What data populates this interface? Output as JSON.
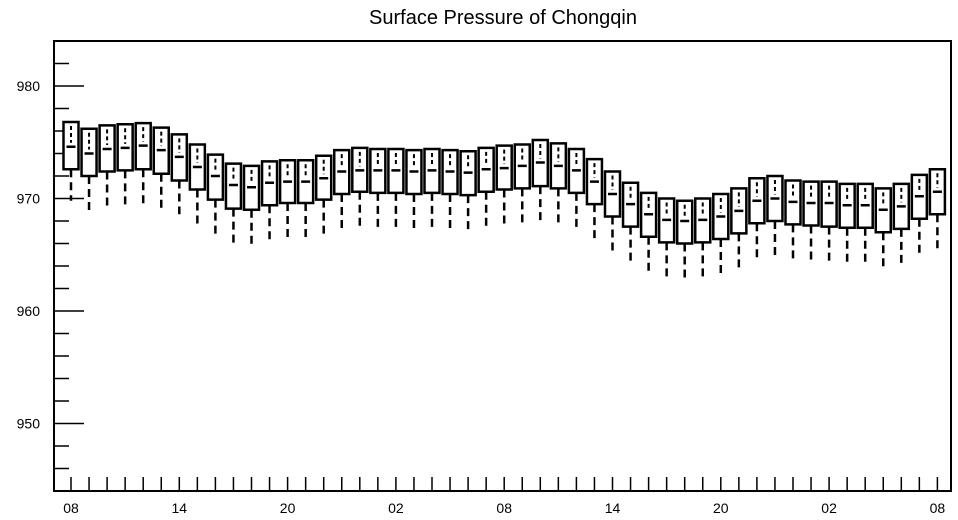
{
  "chart_data": {
    "type": "box",
    "title": "Surface Pressure of Chongqin",
    "xlabel": "",
    "ylabel": "",
    "ylim": [
      944,
      984
    ],
    "yticks": [
      950,
      960,
      970,
      980
    ],
    "x_tick_labels": [
      "08",
      "14",
      "20",
      "02",
      "08",
      "14",
      "20",
      "02",
      "08"
    ],
    "x_tick_positions": [
      0,
      6,
      12,
      18,
      24,
      30,
      36,
      42,
      48
    ],
    "grid": false,
    "series": [
      {
        "boxes": [
          {
            "x": 0,
            "whisker_low": 969.8,
            "q1": 972.6,
            "median": 974.6,
            "q3": 976.8
          },
          {
            "x": 1,
            "whisker_low": 968.8,
            "q1": 972.0,
            "median": 974.0,
            "q3": 976.2
          },
          {
            "x": 2,
            "whisker_low": 969.2,
            "q1": 972.4,
            "median": 974.4,
            "q3": 976.5
          },
          {
            "x": 3,
            "whisker_low": 969.3,
            "q1": 972.5,
            "median": 974.5,
            "q3": 976.6
          },
          {
            "x": 4,
            "whisker_low": 969.4,
            "q1": 972.6,
            "median": 974.7,
            "q3": 976.7
          },
          {
            "x": 5,
            "whisker_low": 969.1,
            "q1": 972.2,
            "median": 974.3,
            "q3": 976.3
          },
          {
            "x": 6,
            "whisker_low": 968.6,
            "q1": 971.6,
            "median": 973.7,
            "q3": 975.7
          },
          {
            "x": 7,
            "whisker_low": 967.6,
            "q1": 970.8,
            "median": 972.8,
            "q3": 974.8
          },
          {
            "x": 8,
            "whisker_low": 966.8,
            "q1": 969.9,
            "median": 972.0,
            "q3": 973.9
          },
          {
            "x": 9,
            "whisker_low": 966.0,
            "q1": 969.1,
            "median": 971.2,
            "q3": 973.1
          },
          {
            "x": 10,
            "whisker_low": 965.8,
            "q1": 969.0,
            "median": 971.0,
            "q3": 972.9
          },
          {
            "x": 11,
            "whisker_low": 966.2,
            "q1": 969.4,
            "median": 971.4,
            "q3": 973.3
          },
          {
            "x": 12,
            "whisker_low": 966.3,
            "q1": 969.6,
            "median": 971.5,
            "q3": 973.4
          },
          {
            "x": 13,
            "whisker_low": 966.3,
            "q1": 969.6,
            "median": 971.5,
            "q3": 973.4
          },
          {
            "x": 14,
            "whisker_low": 966.6,
            "q1": 969.9,
            "median": 971.8,
            "q3": 973.8
          },
          {
            "x": 15,
            "whisker_low": 967.1,
            "q1": 970.4,
            "median": 972.4,
            "q3": 974.3
          },
          {
            "x": 16,
            "whisker_low": 967.3,
            "q1": 970.6,
            "median": 972.5,
            "q3": 974.5
          },
          {
            "x": 17,
            "whisker_low": 967.3,
            "q1": 970.5,
            "median": 972.5,
            "q3": 974.4
          },
          {
            "x": 18,
            "whisker_low": 967.3,
            "q1": 970.5,
            "median": 972.5,
            "q3": 974.4
          },
          {
            "x": 19,
            "whisker_low": 967.2,
            "q1": 970.4,
            "median": 972.4,
            "q3": 974.3
          },
          {
            "x": 20,
            "whisker_low": 967.3,
            "q1": 970.5,
            "median": 972.5,
            "q3": 974.4
          },
          {
            "x": 21,
            "whisker_low": 967.2,
            "q1": 970.4,
            "median": 972.4,
            "q3": 974.3
          },
          {
            "x": 22,
            "whisker_low": 967.1,
            "q1": 970.3,
            "median": 972.3,
            "q3": 974.2
          },
          {
            "x": 23,
            "whisker_low": 967.4,
            "q1": 970.6,
            "median": 972.6,
            "q3": 974.5
          },
          {
            "x": 24,
            "whisker_low": 967.6,
            "q1": 970.8,
            "median": 972.7,
            "q3": 974.7
          },
          {
            "x": 25,
            "whisker_low": 967.8,
            "q1": 970.9,
            "median": 972.9,
            "q3": 974.8
          },
          {
            "x": 26,
            "whisker_low": 968.0,
            "q1": 971.1,
            "median": 973.2,
            "q3": 975.2
          },
          {
            "x": 27,
            "whisker_low": 967.8,
            "q1": 970.9,
            "median": 972.9,
            "q3": 974.9
          },
          {
            "x": 28,
            "whisker_low": 967.3,
            "q1": 970.5,
            "median": 972.5,
            "q3": 974.4
          },
          {
            "x": 29,
            "whisker_low": 966.3,
            "q1": 969.5,
            "median": 971.5,
            "q3": 973.5
          },
          {
            "x": 30,
            "whisker_low": 965.2,
            "q1": 968.4,
            "median": 970.4,
            "q3": 972.4
          },
          {
            "x": 31,
            "whisker_low": 964.3,
            "q1": 967.5,
            "median": 969.5,
            "q3": 971.4
          },
          {
            "x": 32,
            "whisker_low": 963.4,
            "q1": 966.6,
            "median": 968.6,
            "q3": 970.5
          },
          {
            "x": 33,
            "whisker_low": 963.0,
            "q1": 966.1,
            "median": 968.1,
            "q3": 970.0
          },
          {
            "x": 34,
            "whisker_low": 962.9,
            "q1": 966.0,
            "median": 968.0,
            "q3": 969.8
          },
          {
            "x": 35,
            "whisker_low": 963.0,
            "q1": 966.1,
            "median": 968.1,
            "q3": 970.0
          },
          {
            "x": 36,
            "whisker_low": 963.3,
            "q1": 966.4,
            "median": 968.4,
            "q3": 970.4
          },
          {
            "x": 37,
            "whisker_low": 963.8,
            "q1": 966.9,
            "median": 968.9,
            "q3": 970.9
          },
          {
            "x": 38,
            "whisker_low": 964.6,
            "q1": 967.8,
            "median": 969.8,
            "q3": 971.8
          },
          {
            "x": 39,
            "whisker_low": 964.8,
            "q1": 968.0,
            "median": 970.0,
            "q3": 972.0
          },
          {
            "x": 40,
            "whisker_low": 964.5,
            "q1": 967.7,
            "median": 969.7,
            "q3": 971.6
          },
          {
            "x": 41,
            "whisker_low": 964.4,
            "q1": 967.6,
            "median": 969.6,
            "q3": 971.5
          },
          {
            "x": 42,
            "whisker_low": 964.3,
            "q1": 967.5,
            "median": 969.6,
            "q3": 971.5
          },
          {
            "x": 43,
            "whisker_low": 964.2,
            "q1": 967.4,
            "median": 969.4,
            "q3": 971.3
          },
          {
            "x": 44,
            "whisker_low": 964.2,
            "q1": 967.4,
            "median": 969.4,
            "q3": 971.3
          },
          {
            "x": 45,
            "whisker_low": 963.8,
            "q1": 967.0,
            "median": 969.0,
            "q3": 970.9
          },
          {
            "x": 46,
            "whisker_low": 964.1,
            "q1": 967.3,
            "median": 969.3,
            "q3": 971.3
          },
          {
            "x": 47,
            "whisker_low": 965.0,
            "q1": 968.2,
            "median": 970.2,
            "q3": 972.1
          },
          {
            "x": 48,
            "whisker_low": 965.4,
            "q1": 968.6,
            "median": 970.6,
            "q3": 972.6
          }
        ]
      }
    ]
  }
}
